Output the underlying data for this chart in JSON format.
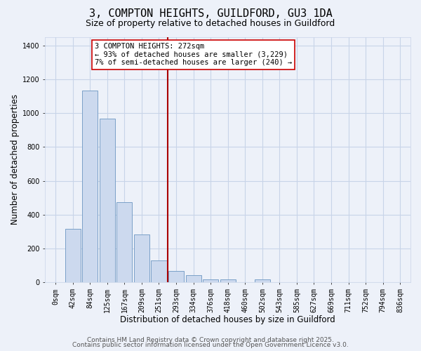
{
  "title": "3, COMPTON HEIGHTS, GUILDFORD, GU3 1DA",
  "subtitle": "Size of property relative to detached houses in Guildford",
  "xlabel": "Distribution of detached houses by size in Guildford",
  "ylabel": "Number of detached properties",
  "bar_labels": [
    "0sqm",
    "42sqm",
    "84sqm",
    "125sqm",
    "167sqm",
    "209sqm",
    "251sqm",
    "293sqm",
    "334sqm",
    "376sqm",
    "418sqm",
    "460sqm",
    "502sqm",
    "543sqm",
    "585sqm",
    "627sqm",
    "669sqm",
    "711sqm",
    "752sqm",
    "794sqm",
    "836sqm"
  ],
  "bar_values": [
    0,
    315,
    1135,
    968,
    475,
    285,
    130,
    68,
    42,
    18,
    18,
    0,
    18,
    0,
    0,
    0,
    0,
    0,
    0,
    0,
    0
  ],
  "bar_color": "#ccd9ee",
  "bar_edge_color": "#7aa0c8",
  "vline_x": 6.5,
  "vline_color": "#aa0000",
  "ylim": [
    0,
    1450
  ],
  "yticks": [
    0,
    200,
    400,
    600,
    800,
    1000,
    1200,
    1400
  ],
  "annotation_title": "3 COMPTON HEIGHTS: 272sqm",
  "annotation_line1": "← 93% of detached houses are smaller (3,229)",
  "annotation_line2": "7% of semi-detached houses are larger (240) →",
  "footer1": "Contains HM Land Registry data © Crown copyright and database right 2025.",
  "footer2": "Contains public sector information licensed under the Open Government Licence v3.0.",
  "background_color": "#edf1f9",
  "grid_color": "#c8d4e8",
  "title_fontsize": 11,
  "subtitle_fontsize": 9,
  "axis_label_fontsize": 8.5,
  "tick_fontsize": 7,
  "annotation_fontsize": 7.5,
  "footer_fontsize": 6.5
}
